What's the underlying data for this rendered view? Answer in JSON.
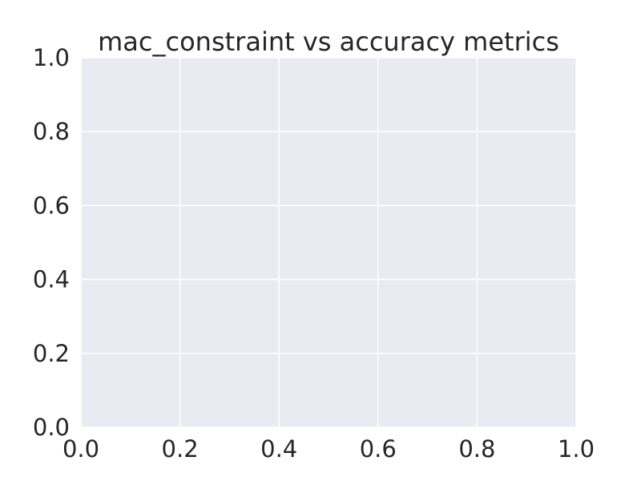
{
  "chart_data": {
    "type": "line",
    "title": "mac_constraint vs accuracy metrics",
    "xlabel": "",
    "ylabel": "",
    "xlim": [
      0.0,
      1.0
    ],
    "ylim": [
      0.0,
      1.0
    ],
    "x_ticks": [
      "0.0",
      "0.2",
      "0.4",
      "0.6",
      "0.8",
      "1.0"
    ],
    "y_ticks": [
      "0.0",
      "0.2",
      "0.4",
      "0.6",
      "0.8",
      "1.0"
    ],
    "series": [],
    "grid": true,
    "legend": "none",
    "colors": {
      "plot_background": "#eaeaf2",
      "grid": "#ffffff",
      "text": "#262626"
    }
  }
}
